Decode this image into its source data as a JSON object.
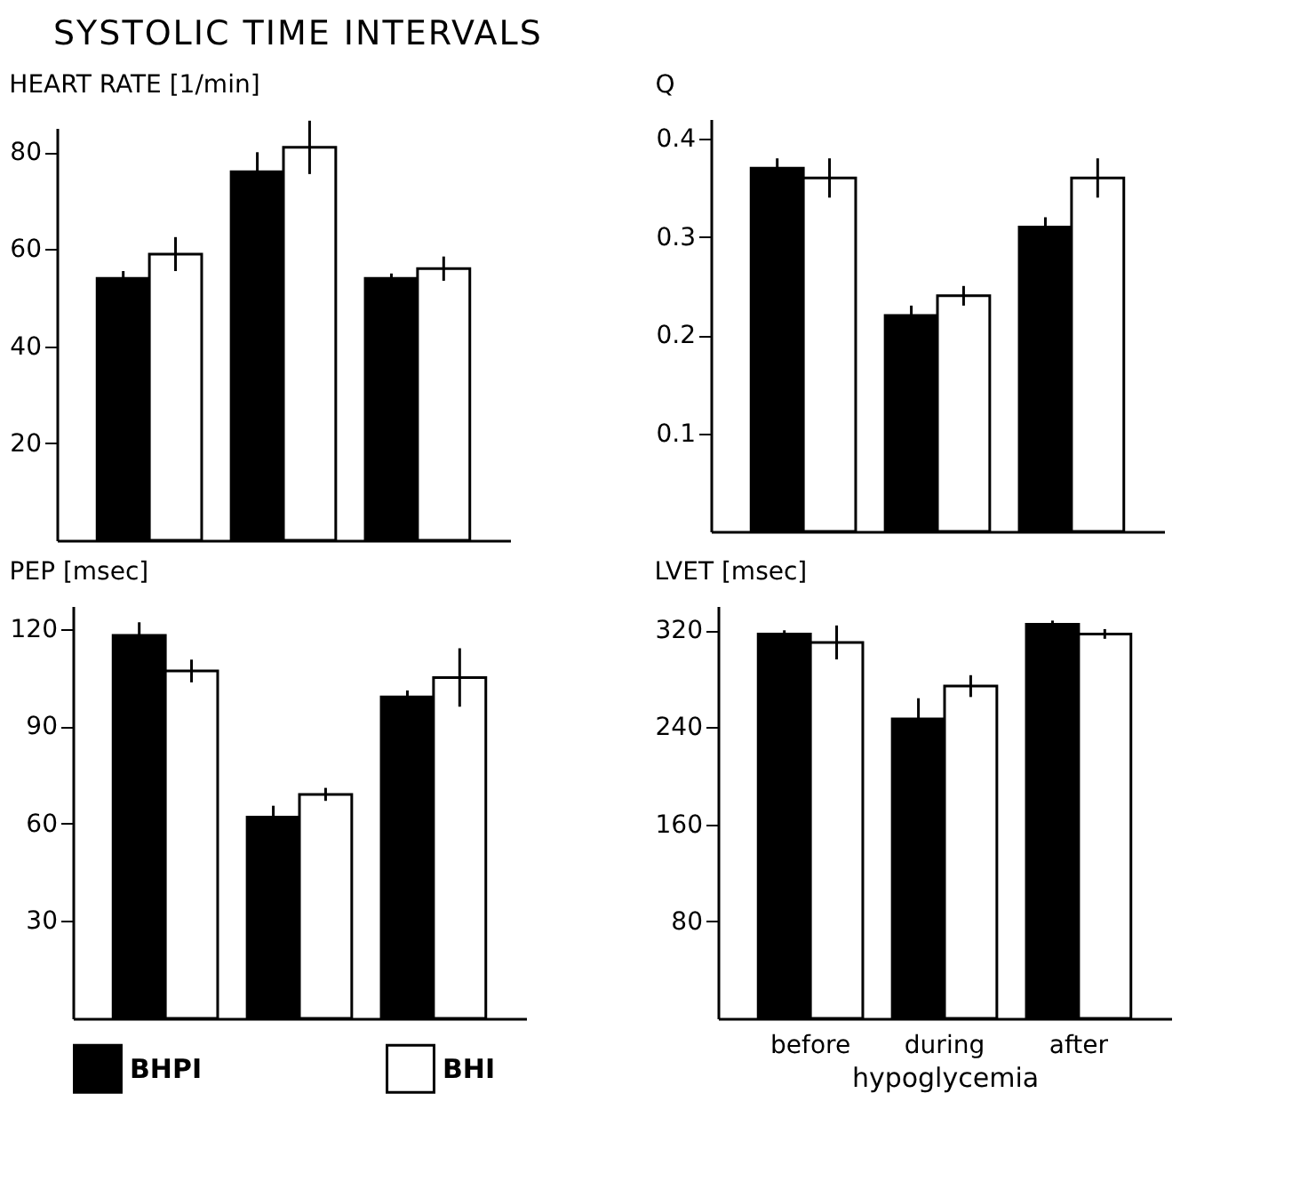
{
  "chart_data": [
    {
      "type": "bar",
      "title": "HEART RATE [1/min]",
      "annotations": [
        "SYSTOLIC TIME INTERVALS"
      ],
      "categories": [
        null,
        null,
        null
      ],
      "tick_labels": "y",
      "ylim": [
        0,
        85
      ],
      "yticks": [
        20,
        40,
        60,
        80
      ],
      "series": [
        {
          "color": "#000000",
          "values": [
            54,
            76,
            54
          ],
          "errors": [
            1.5,
            4,
            1
          ]
        },
        {
          "color": "#ffffff",
          "values": [
            59,
            81,
            56
          ],
          "errors": [
            3.5,
            5.5,
            2.5
          ]
        }
      ]
    },
    {
      "type": "bar",
      "title": "Q",
      "categories": [
        null,
        null,
        null
      ],
      "tick_labels": "y",
      "ylim": [
        0,
        0.42
      ],
      "yticks": [
        0.1,
        0.2,
        0.3,
        0.4
      ],
      "series": [
        {
          "color": "#000000",
          "values": [
            0.37,
            0.22,
            0.31
          ],
          "errors": [
            0.01,
            0.01,
            0.01
          ]
        },
        {
          "color": "#ffffff",
          "values": [
            0.36,
            0.24,
            0.36
          ],
          "errors": [
            0.02,
            0.01,
            0.02
          ]
        }
      ]
    },
    {
      "type": "bar",
      "title": "PEP [msec]",
      "categories": [
        null,
        null,
        null
      ],
      "tick_labels": "y",
      "legend": "bottom",
      "ylim": [
        0,
        127
      ],
      "yticks": [
        30,
        60,
        90,
        120
      ],
      "series": [
        {
          "name": "BHPI",
          "color": "#000000",
          "values": [
            118,
            62,
            99
          ],
          "errors": [
            4,
            3.5,
            2
          ]
        },
        {
          "name": "BHI",
          "color": "#ffffff",
          "values": [
            107,
            69,
            105
          ],
          "errors": [
            3.5,
            2,
            9
          ]
        }
      ]
    },
    {
      "type": "bar",
      "title": "LVET [msec]",
      "xlabel": "hypoglycemia",
      "categories": [
        "before",
        "during",
        "after"
      ],
      "ylim": [
        0,
        340
      ],
      "yticks": [
        80,
        160,
        240,
        320
      ],
      "series": [
        {
          "color": "#000000",
          "values": [
            317,
            247,
            325
          ],
          "errors": [
            3,
            17,
            3
          ]
        },
        {
          "color": "#ffffff",
          "values": [
            310,
            274,
            317
          ],
          "errors": [
            14,
            9,
            4
          ]
        }
      ]
    }
  ]
}
